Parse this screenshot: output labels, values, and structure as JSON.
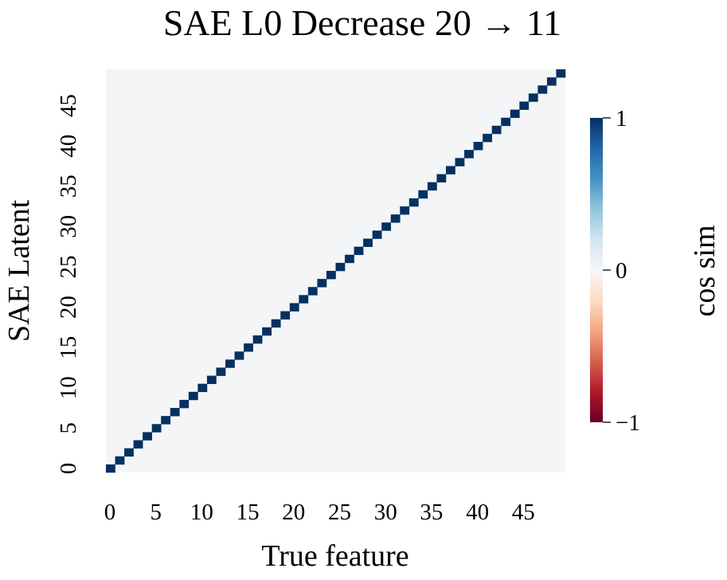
{
  "chart_data": {
    "type": "heatmap",
    "title": "SAE L0 Decrease 20 → 11",
    "xlabel": "True feature",
    "ylabel": "SAE Latent",
    "n_rows": 50,
    "n_cols": 50,
    "x_ticks": [
      "0",
      "5",
      "10",
      "15",
      "20",
      "25",
      "30",
      "35",
      "40",
      "45"
    ],
    "y_ticks": [
      "0",
      "5",
      "10",
      "15",
      "20",
      "25",
      "30",
      "35",
      "40",
      "45"
    ],
    "diagonal_value": 1.0,
    "off_diagonal_value": 0.0,
    "description": "SAE latent i matches true feature i (identity matrix)",
    "colorbar": {
      "label": "cos sim",
      "min": -1,
      "max": 1,
      "ticks": [
        {
          "value": 1,
          "label": "1"
        },
        {
          "value": 0,
          "label": "0"
        },
        {
          "value": -1,
          "label": "−1"
        }
      ],
      "colormap": "RdBu",
      "stops": [
        "#67001f",
        "#b2182b",
        "#d6604d",
        "#f4a582",
        "#fddbc7",
        "#f7f7f7",
        "#d1e5f0",
        "#92c5de",
        "#4393c3",
        "#2166ac",
        "#053061"
      ]
    },
    "background_color": "#f3f5f6"
  }
}
